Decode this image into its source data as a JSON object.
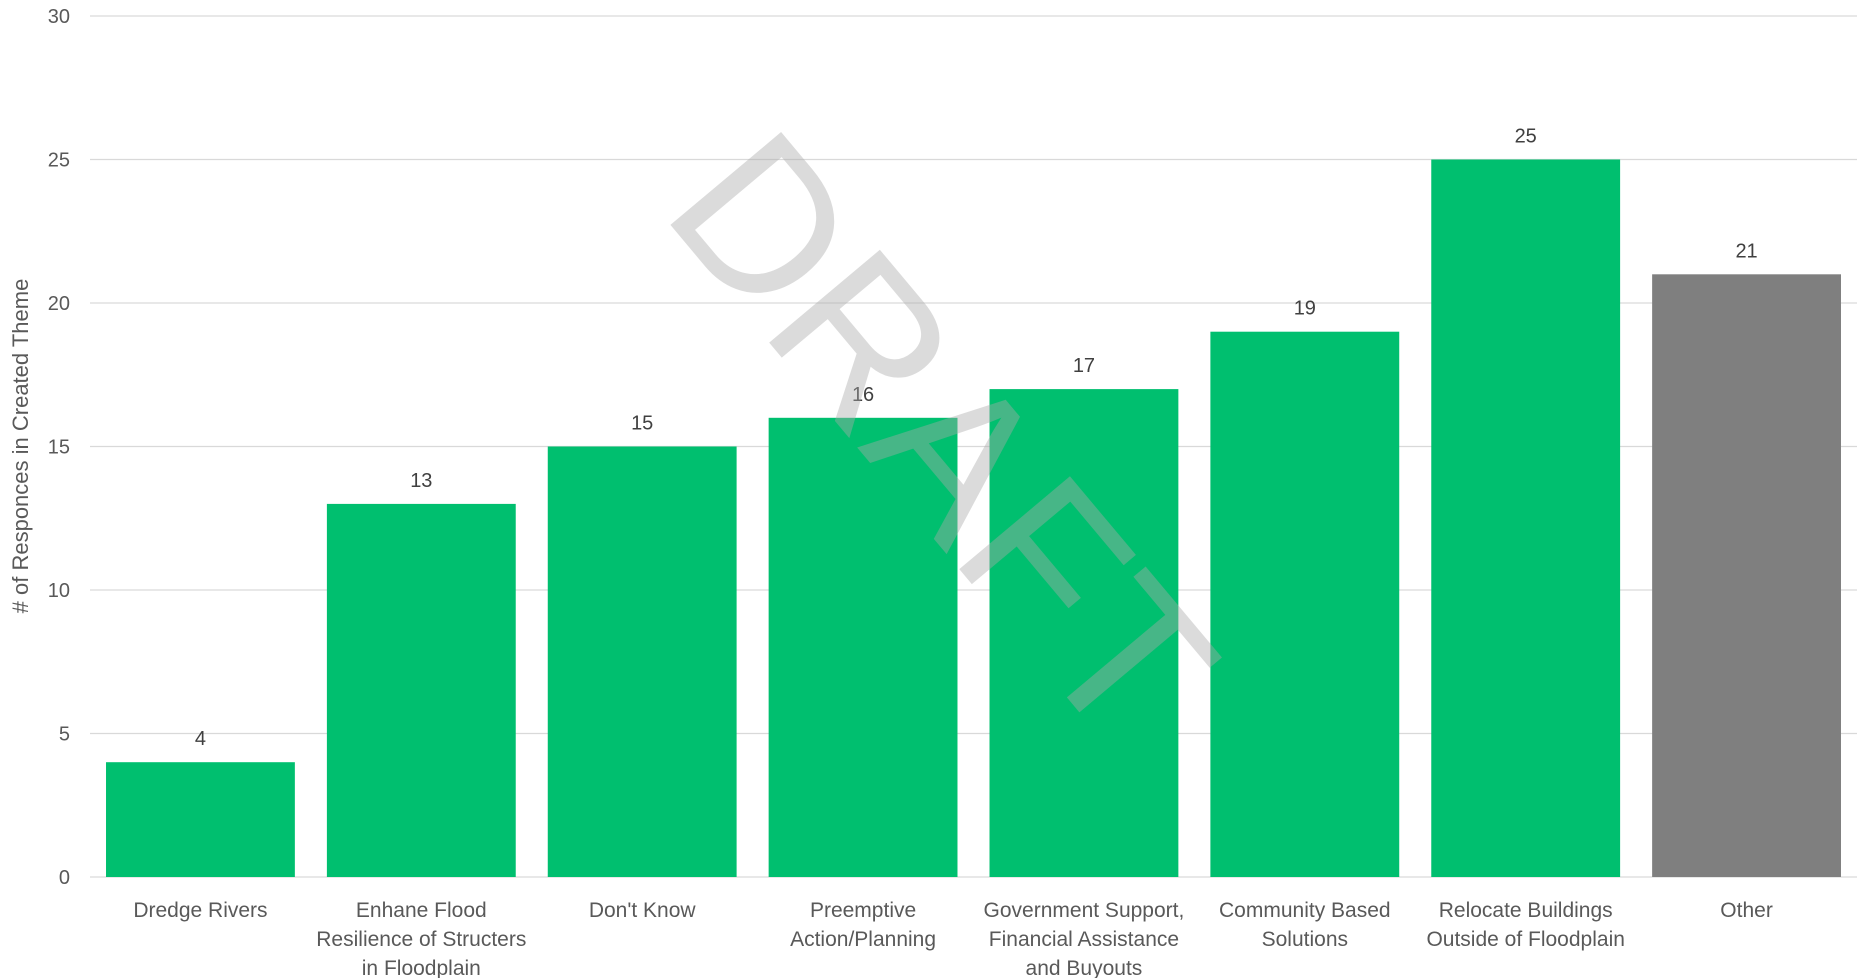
{
  "watermark": "DRAFT",
  "chart_data": {
    "type": "bar",
    "title": "",
    "xlabel": "",
    "ylabel": "# of Responces in Created Theme",
    "ylim": [
      0,
      30
    ],
    "yticks": [
      0,
      5,
      10,
      15,
      20,
      25,
      30
    ],
    "grid": true,
    "legend": "none",
    "categories": [
      "Dredge Rivers",
      "Enhane Flood Resilience of Structers in Floodplain",
      "Don't Know",
      "Preemptive Action/Planning",
      "Government Support, Financial Assistance and Buyouts",
      "Community Based Solutions",
      "Relocate Buildings Outside of Floodplain",
      "Other"
    ],
    "category_label_lines": [
      [
        "Dredge Rivers"
      ],
      [
        "Enhane Flood",
        "Resilience of Structers",
        "in Floodplain"
      ],
      [
        "Don't Know"
      ],
      [
        "Preemptive",
        "Action/Planning"
      ],
      [
        "Government Support,",
        "Financial Assistance",
        "and Buyouts"
      ],
      [
        "Community Based",
        "Solutions"
      ],
      [
        "Relocate Buildings",
        "Outside of Floodplain"
      ],
      [
        "Other"
      ]
    ],
    "values": [
      4,
      13,
      15,
      16,
      17,
      19,
      25,
      21
    ],
    "data_labels": [
      "4",
      "13",
      "15",
      "16",
      "17",
      "19",
      "25",
      "21"
    ],
    "colors": [
      "#00BF6F",
      "#00BF6F",
      "#00BF6F",
      "#00BF6F",
      "#00BF6F",
      "#00BF6F",
      "#00BF6F",
      "#7F7F7F"
    ],
    "grid_color": "#D9D9D9"
  }
}
